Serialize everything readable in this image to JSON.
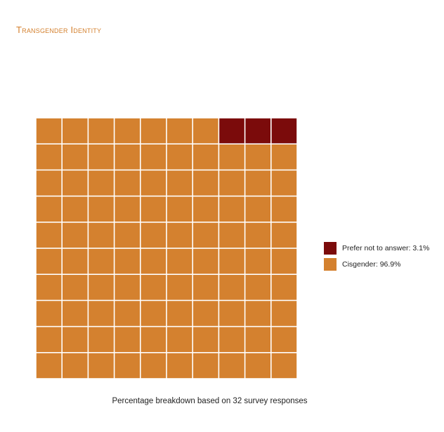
{
  "title": "Transgender Identity",
  "caption": "Percentage breakdown based on 32 survey responses",
  "colors": {
    "background": "#ffffff",
    "title": "#d4812f",
    "grid_lines": "#ffffff"
  },
  "chart_data": {
    "type": "waffle",
    "grid": {
      "rows": 10,
      "cols": 10
    },
    "fill_order": "Prefer not to answer fills top-right cells first; Cisgender fills the remainder",
    "series": [
      {
        "name": "Prefer not to answer",
        "percent": 3.1,
        "cells": 3,
        "color": "#7b0b0b"
      },
      {
        "name": "Cisgender",
        "percent": 96.9,
        "cells": 97,
        "color": "#d4812f"
      }
    ],
    "legend": [
      {
        "label": "Prefer not to answer: 3.1%",
        "color": "#7b0b0b"
      },
      {
        "label": "Cisgender: 96.9%",
        "color": "#d4812f"
      }
    ],
    "legend_position": "right"
  }
}
